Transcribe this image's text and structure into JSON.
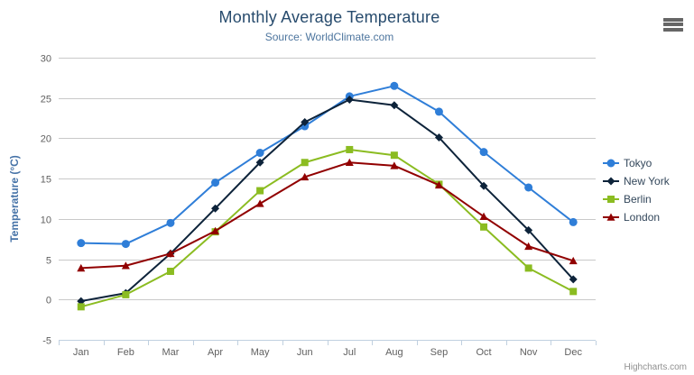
{
  "chart_data": {
    "type": "line",
    "title": "Monthly Average Temperature",
    "subtitle": "Source: WorldClimate.com",
    "categories": [
      "Jan",
      "Feb",
      "Mar",
      "Apr",
      "May",
      "Jun",
      "Jul",
      "Aug",
      "Sep",
      "Oct",
      "Nov",
      "Dec"
    ],
    "series": [
      {
        "name": "Tokyo",
        "color": "#2f7ed8",
        "marker": "circle",
        "values": [
          7.0,
          6.9,
          9.5,
          14.5,
          18.2,
          21.5,
          25.2,
          26.5,
          23.3,
          18.3,
          13.9,
          9.6
        ]
      },
      {
        "name": "New York",
        "color": "#0d233a",
        "marker": "diamond",
        "values": [
          -0.2,
          0.8,
          5.7,
          11.3,
          17.0,
          22.0,
          24.8,
          24.1,
          20.1,
          14.1,
          8.6,
          2.5
        ]
      },
      {
        "name": "Berlin",
        "color": "#8bbc21",
        "marker": "square",
        "values": [
          -0.9,
          0.6,
          3.5,
          8.4,
          13.5,
          17.0,
          18.6,
          17.9,
          14.3,
          9.0,
          3.9,
          1.0
        ]
      },
      {
        "name": "London",
        "color": "#910000",
        "marker": "triangle",
        "values": [
          3.9,
          4.2,
          5.7,
          8.5,
          11.9,
          15.2,
          17.0,
          16.6,
          14.2,
          10.3,
          6.6,
          4.8
        ]
      }
    ],
    "xlabel": "",
    "ylabel": "Temperature (°C)",
    "ylim": [
      -5,
      30
    ],
    "yticks": [
      -5,
      0,
      5,
      10,
      15,
      20,
      25,
      30
    ],
    "grid": true,
    "legend_position": "right",
    "colors": {
      "title_text": "#274b6d",
      "subtitle_text": "#4d759e",
      "yaxis_title_text": "#4572a7",
      "axis_label_text": "#606060",
      "gridline": "#c9c9c9",
      "axis_line": "#c0d0e0"
    }
  },
  "credits": {
    "label": "Highcharts.com"
  }
}
